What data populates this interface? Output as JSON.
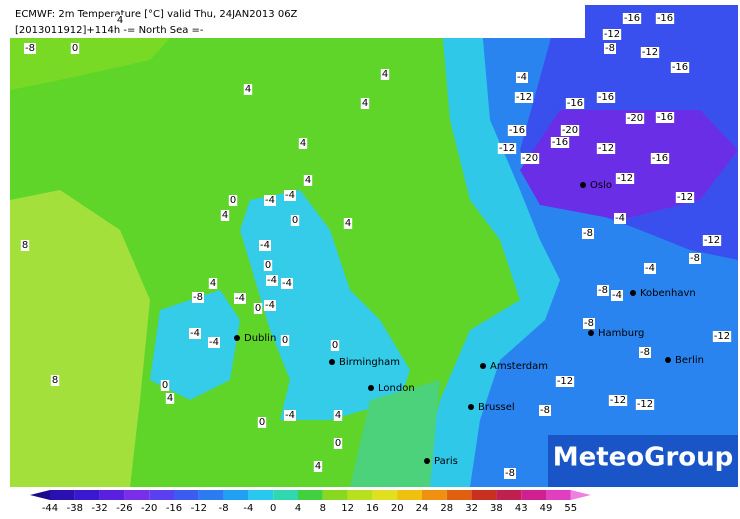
{
  "header": {
    "title": "ECMWF: 2m Temperature [°C] valid Thu, 24JAN2013 06Z",
    "subtitle": "[2013011912]+114h  -= North Sea =-"
  },
  "logo": "MeteoGroup",
  "cities": [
    "Dublin",
    "Birmingham",
    "London",
    "Amsterdam",
    "Brussel",
    "Paris",
    "Oslo",
    "Kobenhavn",
    "Hamburg",
    "Berlin"
  ],
  "contour_labels": [
    "-8",
    "0",
    "4",
    "4",
    "4",
    "4",
    "4",
    "4",
    "4",
    "0",
    "-4",
    "-4",
    "0",
    "4",
    "-4",
    "-4",
    "0",
    "-4",
    "-4",
    "-8",
    "-4",
    "0",
    "-4",
    "-4",
    "0",
    "0",
    "0",
    "8",
    "8",
    "4",
    "4",
    "-4",
    "0",
    "4",
    "0",
    "4",
    "-16",
    "-16",
    "-12",
    "-8",
    "-12",
    "-16",
    "-4",
    "-12",
    "-16",
    "-16",
    "-20",
    "-16",
    "-20",
    "-16",
    "-12",
    "-20",
    "-16",
    "-12",
    "-16",
    "-12",
    "-4",
    "-8",
    "-12",
    "-4",
    "-12",
    "-8",
    "-8",
    "-4",
    "-8",
    "-12",
    "-8",
    "-12",
    "-12",
    "-12",
    "-8",
    "-8"
  ],
  "colorbar": {
    "ticks": [
      -44,
      -38,
      -32,
      -26,
      -20,
      -16,
      -12,
      -8,
      -4,
      0,
      4,
      8,
      12,
      16,
      20,
      24,
      28,
      32,
      38,
      43,
      49,
      55
    ],
    "colors": [
      "#1a0a8c",
      "#2a10b0",
      "#3a18d0",
      "#5a20e0",
      "#7a2ee8",
      "#5a40f0",
      "#3a5cf0",
      "#2a7cf0",
      "#20a0f0",
      "#28c8f0",
      "#30d8b0",
      "#40d040",
      "#88d820",
      "#b8e020",
      "#e0e020",
      "#f0c010",
      "#f09010",
      "#e06010",
      "#c83020",
      "#c02050",
      "#d02090",
      "#e040c0",
      "#f080e0"
    ]
  }
}
